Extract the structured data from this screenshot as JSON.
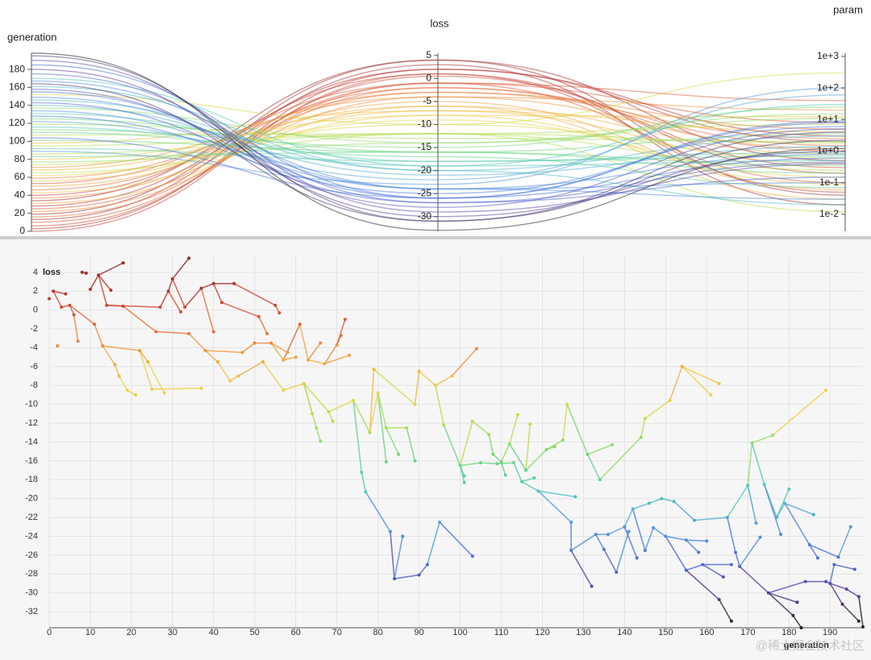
{
  "chart_data": [
    {
      "type": "parallel",
      "color_dimension": 1,
      "colormap": [
        "#222222",
        "#5a3e9e",
        "#4b6fdc",
        "#4f9be0",
        "#52c7c0",
        "#6fd87a",
        "#b5de4f",
        "#efd24a",
        "#f3a43c",
        "#e2643a",
        "#b8322f",
        "#8c2a2a"
      ],
      "dimensions": [
        {
          "label": "generation",
          "lim": [
            0,
            198
          ],
          "ticks": [
            0,
            20,
            40,
            60,
            80,
            100,
            120,
            140,
            160,
            180
          ],
          "values": [
            0,
            3,
            6,
            10,
            13,
            16,
            19,
            22,
            25,
            28,
            31,
            34,
            37,
            40,
            43,
            46,
            50,
            53,
            56,
            59,
            62,
            65,
            68,
            71,
            74,
            77,
            80,
            83,
            86,
            89,
            92,
            95,
            98,
            101,
            104,
            107,
            110,
            113,
            116,
            119,
            122,
            125,
            128,
            131,
            134,
            137,
            140,
            143,
            146,
            149,
            152,
            155,
            158,
            161,
            164,
            167,
            170,
            175,
            180,
            185,
            190,
            195,
            198
          ]
        },
        {
          "label": "loss",
          "lim": [
            -33.2,
            5.5
          ],
          "ticks": [
            5,
            0,
            -5,
            -10,
            -15,
            -20,
            -25,
            -30
          ],
          "values": [
            1,
            2,
            0.5,
            -1,
            3,
            -2,
            4,
            -4,
            -1,
            2,
            -6,
            4,
            -3,
            1,
            -8,
            -2,
            -5,
            -1,
            -7,
            -3,
            -9,
            -12,
            -6,
            -4,
            -10,
            -14,
            -8,
            -16,
            -12,
            -23,
            -18,
            -12,
            -7,
            -16,
            -26,
            -12,
            -17,
            -15,
            -19,
            -13,
            -22,
            -16,
            -25,
            -18,
            -24,
            -14,
            -21,
            -27,
            -20,
            -24,
            -10,
            -26,
            -28,
            -20,
            -31,
            -24,
            -19,
            -27,
            -30,
            -26,
            -29,
            -31,
            -33
          ]
        },
        {
          "label": "param",
          "log": true,
          "lim": [
            0.0029,
            1260
          ],
          "ticks": [
            {
              "value": 1000,
              "label": "1e+3"
            },
            {
              "value": 100,
              "label": "1e+2"
            },
            {
              "value": 10,
              "label": "1e+1"
            },
            {
              "value": 1,
              "label": "1e+0"
            },
            {
              "value": 0.1,
              "label": "1e-1"
            },
            {
              "value": 0.01,
              "label": "1e-2"
            }
          ],
          "values": [
            0.05,
            2,
            0.3,
            8,
            0.02,
            1.5,
            0.5,
            20,
            0.1,
            3,
            0.8,
            0.04,
            5,
            0.2,
            12,
            1,
            0.06,
            40,
            0.4,
            2.5,
            0.15,
            7,
            0.03,
            1.2,
            0.6,
            15,
            0.09,
            3.5,
            0.25,
            100,
            0.7,
            0.012,
            4,
            0.35,
            9,
            1.8,
            0.07,
            25,
            0.5,
            2,
            60,
            0.2,
            6,
            0.9,
            0.03,
            11,
            1.4,
            0.45,
            3,
            0.1,
            300,
            0.6,
            5,
            0.02,
            2.2,
            0.8,
            30,
            0.15,
            1,
            8,
            0.4,
            4,
            1.2
          ]
        }
      ]
    },
    {
      "type": "scatter",
      "x_label": "generation",
      "y_label": "loss",
      "colormap": [
        "#222222",
        "#5a3e9e",
        "#4b6fdc",
        "#4f9be0",
        "#52c7c0",
        "#6fd87a",
        "#b5de4f",
        "#efd24a",
        "#f3a43c",
        "#e2643a",
        "#b8322f",
        "#8c2a2a"
      ],
      "xlim": [
        0,
        198
      ],
      "xticks": [
        0,
        10,
        20,
        30,
        40,
        50,
        60,
        70,
        80,
        90,
        100,
        110,
        120,
        130,
        140,
        150,
        160,
        170,
        180,
        190
      ],
      "ylim": [
        -33.7,
        5.7
      ],
      "yticks": [
        4,
        2,
        0,
        -2,
        -4,
        -6,
        -8,
        -10,
        -12,
        -14,
        -16,
        -18,
        -20,
        -22,
        -24,
        -26,
        -28,
        -30,
        -32
      ],
      "grid": true,
      "x": [
        0,
        1,
        3,
        4,
        5,
        6,
        7,
        8,
        9,
        10,
        11,
        12,
        13,
        14,
        15,
        18,
        18,
        2,
        16,
        17,
        19,
        21,
        22,
        24,
        25,
        26,
        27,
        28,
        29,
        30,
        32,
        33,
        34,
        34,
        37,
        37,
        38,
        40,
        40,
        41,
        42,
        44,
        45,
        46,
        47,
        50,
        51,
        52,
        53,
        54,
        55,
        56,
        57,
        57,
        58,
        60,
        61,
        62,
        63,
        64,
        65,
        66,
        66,
        67,
        68,
        69,
        70,
        71,
        72,
        73,
        74,
        76,
        77,
        78,
        79,
        80,
        82,
        82,
        83,
        84,
        85,
        86,
        87,
        89,
        89,
        90,
        90,
        92,
        94,
        95,
        96,
        98,
        100,
        101,
        101,
        103,
        103,
        104,
        105,
        107,
        108,
        109,
        110,
        111,
        112,
        113,
        114,
        115,
        116,
        117,
        118,
        119,
        121,
        123,
        125,
        126,
        127,
        127,
        128,
        131,
        132,
        133,
        134,
        135,
        136,
        137,
        138,
        140,
        141,
        142,
        143,
        144,
        145,
        145,
        146,
        147,
        149,
        150,
        151,
        152,
        154,
        155,
        155,
        157,
        158,
        159,
        160,
        161,
        163,
        163,
        164,
        165,
        166,
        166,
        167,
        168,
        170,
        171,
        172,
        173,
        174,
        175,
        176,
        177,
        178,
        179,
        180,
        181,
        182,
        183,
        184,
        185,
        186,
        187,
        189,
        189,
        190,
        191,
        192,
        193,
        194,
        195,
        196,
        197,
        197,
        198
      ],
      "y": [
        1.2,
        2,
        0.3,
        1.7,
        0.5,
        -0.5,
        -3.3,
        4,
        3.9,
        2.2,
        -1.5,
        3.7,
        -3.8,
        0.5,
        2.1,
        5,
        0.4,
        -3.8,
        -5.8,
        -7,
        -8.5,
        -9,
        -4.3,
        -5.5,
        -8.4,
        -2.3,
        0.3,
        -8.8,
        2,
        3.3,
        -0.2,
        0.3,
        5.5,
        -2.5,
        -8.3,
        2.3,
        -4.3,
        -2.3,
        2.8,
        -5.5,
        0.8,
        -7.5,
        2.8,
        -7,
        -4.5,
        -3.5,
        -0.7,
        -5.5,
        -2.5,
        -3.5,
        0.5,
        -0.3,
        -5.3,
        -8.5,
        -4.5,
        -5,
        -1.5,
        -7.8,
        -5.3,
        -11,
        -12.5,
        -13.9,
        -3.5,
        -5.7,
        -10.8,
        -11.8,
        -3.7,
        -2.7,
        -1,
        -4.8,
        -9.6,
        -17.2,
        -19.3,
        -13,
        -6.3,
        -8.8,
        -16.1,
        -12.5,
        -23.5,
        -28.5,
        -15.3,
        -24,
        -12.5,
        -16,
        -10,
        -28.1,
        -6.5,
        -27,
        -8,
        -22.5,
        -12.2,
        -7,
        -16.5,
        -17.6,
        -18.3,
        -11.8,
        -26.1,
        -4.1,
        -16.2,
        -13.2,
        -15.3,
        -16.3,
        -16.1,
        -17.5,
        -14.2,
        -16.2,
        -11.1,
        -18.2,
        -17,
        -12.1,
        -17.8,
        -19.2,
        -14.8,
        -14.5,
        -13.8,
        -10,
        -22.5,
        -25.5,
        -19.8,
        -15.3,
        -29.3,
        -23.8,
        -18,
        -25.4,
        -23.8,
        -14.3,
        -27.8,
        -23,
        -23.5,
        -21.1,
        -26.3,
        -13.5,
        -25.5,
        -11.5,
        -20.5,
        -23.1,
        -20,
        -24,
        -9.6,
        -20.3,
        -6,
        -27.6,
        -24.4,
        -22.3,
        -25.7,
        -27,
        -24.5,
        -9,
        -7.8,
        -30.7,
        -28.3,
        -22,
        -33,
        -27,
        -25.7,
        -27.2,
        -18.6,
        -14.1,
        -22.6,
        -24.1,
        -18.5,
        -30,
        -13.3,
        -22,
        -23.8,
        -20.5,
        -19,
        -32.4,
        -31,
        -33.7,
        -28.8,
        -24.9,
        -21.7,
        -26.3,
        -8.5,
        -28.8,
        -29,
        -27,
        -26.2,
        -31.2,
        -29.6,
        -23,
        -27.5,
        -30.4,
        -33,
        -33.6
      ],
      "parent": [
        null,
        null,
        1,
        1,
        2,
        4,
        5,
        null,
        7,
        null,
        4,
        9,
        10,
        11,
        11,
        11,
        13,
        null,
        12,
        18,
        19,
        20,
        12,
        22,
        22,
        16,
        13,
        23,
        26,
        28,
        28,
        29,
        29,
        25,
        24,
        31,
        33,
        35,
        35,
        36,
        38,
        39,
        38,
        41,
        36,
        44,
        40,
        43,
        46,
        45,
        42,
        50,
        49,
        47,
        49,
        52,
        52,
        53,
        56,
        57,
        57,
        60,
        58,
        58,
        57,
        64,
        63,
        66,
        66,
        63,
        64,
        70,
        71,
        70,
        73,
        73,
        75,
        75,
        72,
        78,
        77,
        79,
        77,
        82,
        74,
        79,
        84,
        85,
        86,
        87,
        88,
        88,
        90,
        92,
        92,
        92,
        89,
        91,
        92,
        95,
        99,
        98,
        100,
        102,
        102,
        101,
        104,
        105,
        104,
        108,
        107,
        107,
        108,
        112,
        112,
        114,
        111,
        116,
        111,
        115,
        117,
        117,
        119,
        121,
        121,
        119,
        123,
        124,
        126,
        127,
        127,
        122,
        129,
        131,
        129,
        132,
        134,
        135,
        133,
        136,
        138,
        137,
        137,
        139,
        142,
        141,
        142,
        140,
        140,
        141,
        145,
        143,
        149,
        145,
        151,
        154,
        151,
        156,
        156,
        155,
        157,
        155,
        157,
        160,
        160,
        163,
        163,
        161,
        161,
        167,
        161,
        165,
        165,
        171,
        162,
        170,
        175,
        176,
        171,
        176,
        176,
        178,
        177,
        180,
        179,
        183
      ]
    }
  ],
  "watermark": "@稀土掘金技术社区"
}
